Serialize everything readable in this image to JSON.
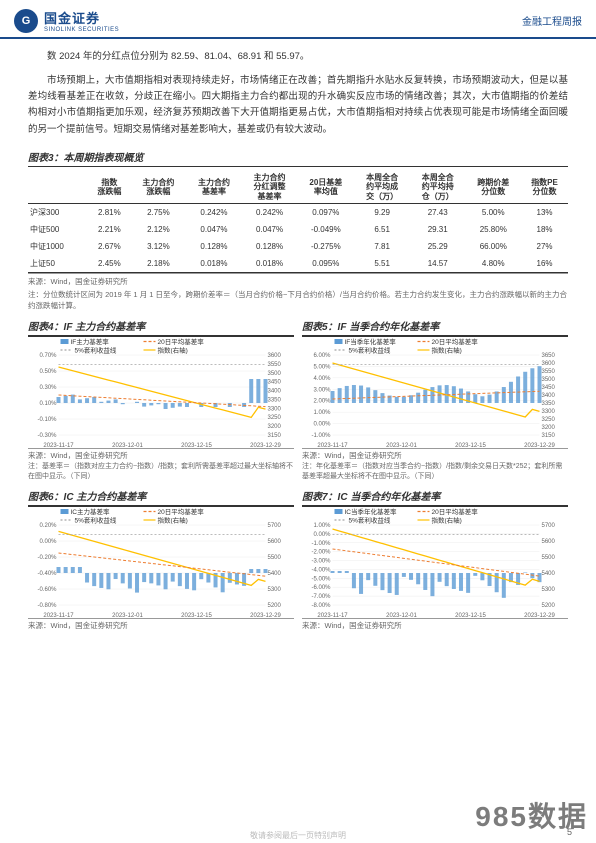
{
  "header": {
    "company_cn": "国金证券",
    "company_en": "SINOLINK SECURITIES",
    "report_type": "金融工程周报"
  },
  "paragraphs": {
    "p1": "数 2024 年的分红点位分别为 82.59、81.04、68.91 和 55.97。",
    "p2": "市场预期上，大市值期指相对表现持续走好，市场情绪正在改善；首先期指升水贴水反复转换，市场预期波动大，但是以基差均线看基差正在收敛，分歧正在缩小。四大期指主力合约都出现的升水确实反应市场的情绪改善；其次，大市值期指的价差结构相对小市值期指更加乐观，经济复苏预期改善下大开值期指更易占优，大市值期指相对持续占优表现可能是市场情绪全面回暖的另一个提前信号。短期交易情绪对基差影响大，基差或仍有较大波动。"
  },
  "table3": {
    "title": "图表3：本周期指表现概览",
    "columns": [
      "",
      "指数\n涨跌幅",
      "主力合约\n涨跌幅",
      "主力合约\n基差率",
      "主力合约\n分红调整\n基差率",
      "20日基差\n率均值",
      "本周全合\n约平均成\n交（万）",
      "本周全合\n约平均持\n仓（万）",
      "跨期价差\n分位数",
      "指数PE\n分位数"
    ],
    "rows": [
      [
        "沪深300",
        "2.81%",
        "2.75%",
        "0.242%",
        "0.242%",
        "0.097%",
        "9.29",
        "27.43",
        "5.00%",
        "13%"
      ],
      [
        "中证500",
        "2.21%",
        "2.12%",
        "0.047%",
        "0.047%",
        "-0.049%",
        "6.51",
        "29.31",
        "25.80%",
        "18%"
      ],
      [
        "中证1000",
        "2.67%",
        "3.12%",
        "0.128%",
        "0.128%",
        "-0.275%",
        "7.81",
        "25.29",
        "66.00%",
        "27%"
      ],
      [
        "上证50",
        "2.45%",
        "2.18%",
        "0.018%",
        "0.018%",
        "0.095%",
        "5.51",
        "14.57",
        "4.80%",
        "16%"
      ]
    ],
    "source": "来源：Wind，国金证券研究所",
    "note": "注：分位数统计区间为 2019 年 1 月 1 日至今，跨期价差率＝（当月合约价格−下月合约价格）/当月合约价格。若主力合约发生变化，主力合约涨跌幅以新的主力合约涨跌幅计算。"
  },
  "chart4": {
    "title": "图表4：IF 主力合约基差率",
    "legend": [
      "IF主力基差率",
      "20日平均基差率",
      "5%套利收益线",
      "指数(右轴)"
    ],
    "colors": {
      "bar": "#5b9bd5",
      "ma": "#ed7d31",
      "arb": "#a5a5a5",
      "idx": "#ffc000"
    },
    "y_left": {
      "min": -0.3,
      "max": 0.7,
      "ticks": [
        "0.70%",
        "0.50%",
        "0.30%",
        "0.10%",
        "-0.10%",
        "-0.30%"
      ]
    },
    "y_right": {
      "min": 3150,
      "max": 3600,
      "ticks": [
        "3600",
        "3550",
        "3500",
        "3450",
        "3400",
        "3350",
        "3300",
        "3250",
        "3200",
        "3150"
      ]
    },
    "x_ticks": [
      "2023-11-17",
      "2023-12-01",
      "2023-12-15",
      "2023-12-29"
    ],
    "source": "来源：Wind，国金证券研究所",
    "note": "注：基差率＝（指数对应主力合约−指数）/指数；套利所需基差率超过最大坐标轴将不在图中显示。（下同）"
  },
  "chart5": {
    "title": "图表5：IF 当季合约年化基差率",
    "legend": [
      "IF当季年化基差率",
      "20日平均基差率",
      "5%套利收益线",
      "指数(右轴)"
    ],
    "colors": {
      "bar": "#5b9bd5",
      "ma": "#ed7d31",
      "arb": "#a5a5a5",
      "idx": "#ffc000"
    },
    "y_left": {
      "ticks": [
        "6.00%",
        "5.00%",
        "4.00%",
        "3.00%",
        "2.00%",
        "1.00%",
        "0.00%",
        "-1.00%"
      ]
    },
    "y_right": {
      "ticks": [
        "3650",
        "3600",
        "3550",
        "3500",
        "3450",
        "3400",
        "3350",
        "3300",
        "3250",
        "3200",
        "3150"
      ]
    },
    "x_ticks": [
      "2023-11-17",
      "2023-12-01",
      "2023-12-15",
      "2023-12-29"
    ],
    "source": "来源：Wind，国金证券研究所",
    "note": "注：年化基差率＝（指数对应当季合约−指数）/指数/剩余交易日天数*252；套利所需基差率超最大坐标将不在图中显示。（下同）"
  },
  "chart6": {
    "title": "图表6：IC 主力合约基差率",
    "legend": [
      "IC主力基差率",
      "20日平均基差率",
      "5%套利收益线",
      "指数(右轴)"
    ],
    "colors": {
      "bar": "#5b9bd5",
      "ma": "#ed7d31",
      "arb": "#a5a5a5",
      "idx": "#ffc000"
    },
    "y_left": {
      "ticks": [
        "0.20%",
        "0.00%",
        "-0.20%",
        "-0.40%",
        "-0.60%",
        "-0.80%"
      ]
    },
    "y_right": {
      "ticks": [
        "5700",
        "5600",
        "5500",
        "5400",
        "5300",
        "5200"
      ]
    },
    "x_ticks": [
      "2023-11-17",
      "2023-12-01",
      "2023-12-15",
      "2023-12-29"
    ],
    "source": "来源：Wind，国金证券研究所"
  },
  "chart7": {
    "title": "图表7：IC 当季合约年化基差率",
    "legend": [
      "IC当季年化基差率",
      "20日平均基差率",
      "5%套利收益线",
      "指数(右轴)"
    ],
    "colors": {
      "bar": "#5b9bd5",
      "ma": "#ed7d31",
      "arb": "#a5a5a5",
      "idx": "#ffc000"
    },
    "y_left": {
      "ticks": [
        "1.00%",
        "0.00%",
        "-1.00%",
        "-2.00%",
        "-3.00%",
        "-4.00%",
        "-5.00%",
        "-6.00%",
        "-7.00%",
        "-8.00%"
      ]
    },
    "y_right": {
      "ticks": [
        "5700",
        "5600",
        "5500",
        "5400",
        "5300",
        "5200"
      ]
    },
    "x_ticks": [
      "2023-11-17",
      "2023-12-01",
      "2023-12-15",
      "2023-12-29"
    ],
    "source": "来源：Wind，国金证券研究所"
  },
  "watermark": "985数据 985data.com",
  "watermark_short": "985数据",
  "page_num": "5",
  "footer": "敬请参阅最后一页特别声明"
}
